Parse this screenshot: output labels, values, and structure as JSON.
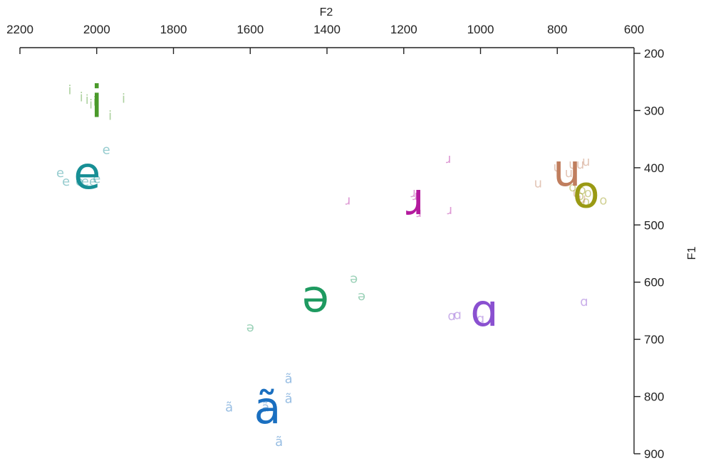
{
  "chart_data": {
    "type": "scatter",
    "title": "",
    "xlabel": "F2",
    "ylabel": "F1",
    "xlim": [
      2200,
      600
    ],
    "ylim": [
      200,
      900
    ],
    "x_ticks": [
      2200,
      2000,
      1800,
      1600,
      1400,
      1200,
      1000,
      800,
      600
    ],
    "y_ticks": [
      200,
      300,
      400,
      500,
      600,
      700,
      800,
      900
    ],
    "x_axis_position": "top",
    "y_axis_position": "right",
    "x_reversed": true,
    "y_reversed": true,
    "grid": false,
    "legend": "none",
    "series": [
      {
        "symbol": "i",
        "color": "#4a9a2a",
        "mean": {
          "x": 2000,
          "y": 290
        },
        "tokens": [
          {
            "x": 2070,
            "y": 265
          },
          {
            "x": 2040,
            "y": 278
          },
          {
            "x": 2025,
            "y": 282
          },
          {
            "x": 2015,
            "y": 290
          },
          {
            "x": 2005,
            "y": 285
          },
          {
            "x": 1930,
            "y": 280
          },
          {
            "x": 1965,
            "y": 310
          }
        ]
      },
      {
        "symbol": "e",
        "color": "#178f95",
        "mean": {
          "x": 2025,
          "y": 415
        },
        "tokens": [
          {
            "x": 2095,
            "y": 410
          },
          {
            "x": 2080,
            "y": 425
          },
          {
            "x": 1975,
            "y": 370
          },
          {
            "x": 2045,
            "y": 425
          },
          {
            "x": 2030,
            "y": 425
          },
          {
            "x": 2010,
            "y": 425
          },
          {
            "x": 2000,
            "y": 420
          }
        ]
      },
      {
        "symbol": "ɹ",
        "color": "#b41a9e",
        "mean": {
          "x": 1170,
          "y": 460
        },
        "tokens": [
          {
            "x": 1083,
            "y": 385
          },
          {
            "x": 1175,
            "y": 445
          },
          {
            "x": 1170,
            "y": 450
          },
          {
            "x": 1345,
            "y": 458
          },
          {
            "x": 1080,
            "y": 475
          },
          {
            "x": 1160,
            "y": 480
          }
        ]
      },
      {
        "symbol": "u",
        "color": "#c07e5e",
        "mean": {
          "x": 775,
          "y": 410
        },
        "tokens": [
          {
            "x": 740,
            "y": 395
          },
          {
            "x": 760,
            "y": 395
          },
          {
            "x": 725,
            "y": 390
          },
          {
            "x": 800,
            "y": 400
          },
          {
            "x": 770,
            "y": 410
          },
          {
            "x": 850,
            "y": 428
          },
          {
            "x": 750,
            "y": 445
          },
          {
            "x": 735,
            "y": 455
          }
        ]
      },
      {
        "symbol": "o",
        "color": "#9a9a14",
        "mean": {
          "x": 725,
          "y": 448
        },
        "tokens": [
          {
            "x": 735,
            "y": 440
          },
          {
            "x": 740,
            "y": 450
          },
          {
            "x": 720,
            "y": 445
          },
          {
            "x": 725,
            "y": 460
          },
          {
            "x": 680,
            "y": 458
          },
          {
            "x": 760,
            "y": 435
          }
        ]
      },
      {
        "symbol": "ə",
        "color": "#1e9a60",
        "mean": {
          "x": 1430,
          "y": 630
        },
        "tokens": [
          {
            "x": 1330,
            "y": 595
          },
          {
            "x": 1310,
            "y": 625
          },
          {
            "x": 1600,
            "y": 680
          }
        ]
      },
      {
        "symbol": "ɑ",
        "color": "#8a50d0",
        "mean": {
          "x": 990,
          "y": 655
        },
        "tokens": [
          {
            "x": 1060,
            "y": 658
          },
          {
            "x": 1075,
            "y": 660
          },
          {
            "x": 1000,
            "y": 665
          },
          {
            "x": 730,
            "y": 635
          }
        ]
      },
      {
        "symbol": "ã",
        "color": "#1a6fc0",
        "mean": {
          "x": 1555,
          "y": 825
        },
        "tokens": [
          {
            "x": 1500,
            "y": 770
          },
          {
            "x": 1500,
            "y": 805
          },
          {
            "x": 1560,
            "y": 820
          },
          {
            "x": 1655,
            "y": 820
          },
          {
            "x": 1525,
            "y": 880
          }
        ]
      }
    ]
  }
}
